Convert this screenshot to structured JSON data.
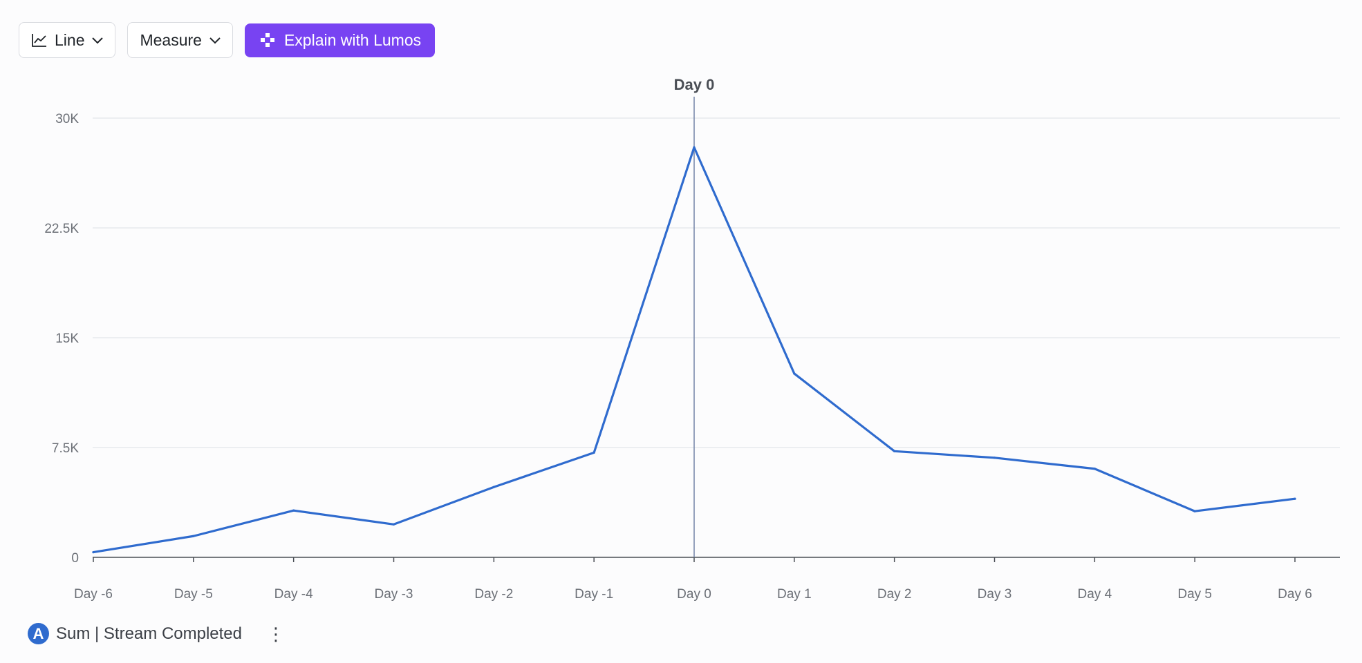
{
  "toolbar": {
    "chart_type_label": "Line",
    "measure_label": "Measure",
    "explain_label": "Explain with Lumos"
  },
  "legend": {
    "badge": "A",
    "series_label": "Sum | Stream Completed"
  },
  "chart_data": {
    "type": "line",
    "categories": [
      "Day -6",
      "Day -5",
      "Day -4",
      "Day -3",
      "Day -2",
      "Day -1",
      "Day 0",
      "Day 1",
      "Day 2",
      "Day 3",
      "Day 4",
      "Day 5",
      "Day 6"
    ],
    "series": [
      {
        "name": "Sum | Stream Completed",
        "values": [
          350,
          1450,
          3200,
          2250,
          4800,
          7150,
          28000,
          12550,
          7250,
          6800,
          6050,
          3150,
          4000
        ],
        "color": "#2f6bce"
      }
    ],
    "yticks": [
      {
        "value": 0,
        "label": "0"
      },
      {
        "value": 7500,
        "label": "7.5K"
      },
      {
        "value": 15000,
        "label": "15K"
      },
      {
        "value": 22500,
        "label": "22.5K"
      },
      {
        "value": 30000,
        "label": "30K"
      }
    ],
    "ylim": [
      0,
      30000
    ],
    "marker": {
      "category": "Day 0",
      "label": "Day 0"
    },
    "grid": true,
    "xlabel": "",
    "ylabel": "",
    "title": ""
  }
}
